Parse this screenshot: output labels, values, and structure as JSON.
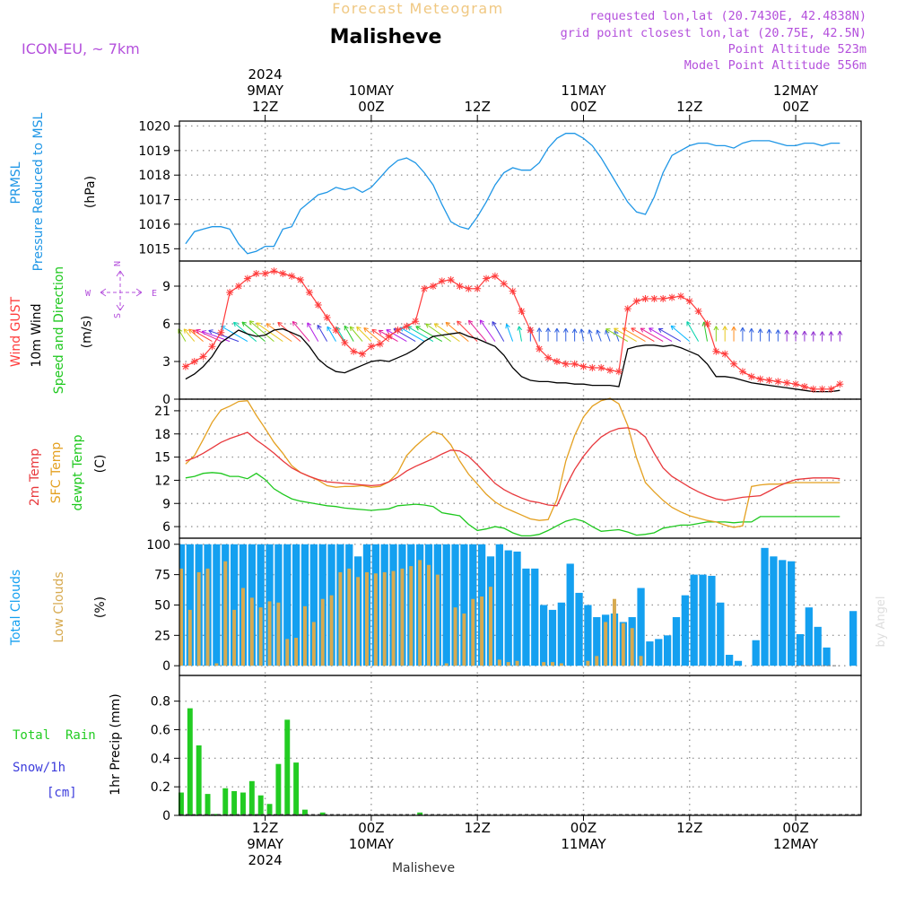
{
  "header": {
    "product": "Forecast Meteogram",
    "location": "Malisheve",
    "model": "ICON-EU, ~ 7km",
    "requested": "requested lon,lat (20.7430E, 42.4838N)",
    "gridpoint": "grid point closest lon,lat (20.75E, 42.5N)",
    "point_alt": "Point Altitude 523m",
    "model_alt": "Model Point Altitude 556m",
    "footer_location": "Malisheve",
    "credit": "by Angel"
  },
  "colors": {
    "pressure": "#1e96e6",
    "gust": "#ff3c3c",
    "wind": "#000000",
    "temp2m": "#e8383c",
    "sfc": "#e4a020",
    "dewpt": "#1ec81e",
    "clouds_total": "#14a0f0",
    "clouds_low": "#d7aa50",
    "rain": "#22cc22",
    "snow": "#3c3cdc",
    "model": "#b450dc",
    "header_product": "#f0c882",
    "grid": "#9a9a9a"
  },
  "time_axis": {
    "top": [
      {
        "lines": [
          "2024",
          "9MAY",
          "12Z"
        ],
        "hour": 12
      },
      {
        "lines": [
          "10MAY",
          "00Z"
        ],
        "hour": 24
      },
      {
        "lines": [
          "12Z"
        ],
        "hour": 36
      },
      {
        "lines": [
          "11MAY",
          "00Z"
        ],
        "hour": 48
      },
      {
        "lines": [
          "12Z"
        ],
        "hour": 60
      },
      {
        "lines": [
          "12MAY",
          "00Z"
        ],
        "hour": 72
      }
    ],
    "bottom": [
      {
        "lines": [
          "12Z",
          "9MAY",
          "2024"
        ],
        "hour": 12
      },
      {
        "lines": [
          "00Z",
          "10MAY"
        ],
        "hour": 24
      },
      {
        "lines": [
          "12Z"
        ],
        "hour": 36
      },
      {
        "lines": [
          "00Z",
          "11MAY"
        ],
        "hour": 48
      },
      {
        "lines": [
          "12Z"
        ],
        "hour": 60
      },
      {
        "lines": [
          "00Z",
          "12MAY"
        ],
        "hour": 72
      }
    ]
  },
  "panels": [
    {
      "id": "pressure",
      "labels": [
        {
          "text": "PRMSL",
          "color": "#1e96e6"
        },
        {
          "text": "Pressure Reduced to MSL",
          "color": "#1e96e6"
        },
        {
          "text": "(hPa)",
          "color": "#000000"
        }
      ]
    },
    {
      "id": "wind",
      "labels": [
        {
          "text": "Wind GUST",
          "color": "#ff3c3c"
        },
        {
          "text": "10m Wind",
          "color": "#000000"
        },
        {
          "text": "Speed and Direction",
          "color": "#1ec81e"
        },
        {
          "text": "(m/s)",
          "color": "#000000"
        }
      ],
      "compass": {
        "n": "N",
        "s": "S",
        "e": "E",
        "w": "W"
      }
    },
    {
      "id": "temp",
      "labels": [
        {
          "text": "2m Temp",
          "color": "#e8383c"
        },
        {
          "text": "SFC Temp",
          "color": "#e4a020"
        },
        {
          "text": "dewpt Temp",
          "color": "#1ec81e"
        },
        {
          "text": "(C)",
          "color": "#000000"
        }
      ]
    },
    {
      "id": "clouds",
      "labels": [
        {
          "text": "Total Clouds",
          "color": "#14a0f0"
        },
        {
          "text": "Low Clouds",
          "color": "#d7aa50"
        },
        {
          "text": "(%)",
          "color": "#000000"
        }
      ]
    },
    {
      "id": "precip",
      "labels": [
        {
          "text": "1hr Precip (mm)",
          "color": "#000000"
        }
      ],
      "legend": [
        {
          "text": "Total  Rain",
          "color": "#22cc22"
        },
        {
          "text": "Snow/1h",
          "color": "#3c3cdc"
        },
        {
          "text": "[cm]",
          "color": "#3c3cdc"
        }
      ]
    }
  ],
  "chart_data": {
    "type": "line",
    "x_unit": "hours from 2024-05-09 00Z",
    "x_range": [
      2.3,
      79.4
    ],
    "pressure": {
      "ylabel": "(hPa)",
      "ylim": [
        1014.5,
        1020.2
      ],
      "ticks": [
        1015,
        1016,
        1017,
        1018,
        1019,
        1020
      ],
      "x": [
        0,
        1,
        2,
        3,
        4,
        5,
        6,
        7,
        8,
        9,
        10,
        11,
        12,
        13,
        14,
        15,
        16,
        17,
        18,
        19,
        20,
        21,
        22,
        23,
        24,
        25,
        26,
        27,
        28,
        29,
        30,
        31,
        32,
        33,
        34,
        35,
        36,
        37,
        38,
        39,
        40,
        41,
        42,
        43,
        44,
        45,
        46,
        47,
        48,
        49,
        50,
        51,
        52,
        53,
        54,
        55,
        56,
        57,
        58,
        59,
        60,
        61,
        62,
        63,
        64,
        65,
        66,
        67,
        68,
        69,
        70,
        71,
        72,
        73,
        74,
        75,
        76,
        77
      ],
      "y": [
        1015.5,
        1015.3,
        1015.4,
        1015.2,
        1015.7,
        1015.8,
        1015.9,
        1015.9,
        1015.8,
        1015.2,
        1014.8,
        1014.9,
        1015.1,
        1015.1,
        1015.8,
        1015.9,
        1016.6,
        1016.9,
        1017.2,
        1017.3,
        1017.5,
        1017.4,
        1017.5,
        1017.3,
        1017.5,
        1017.9,
        1018.3,
        1018.6,
        1018.7,
        1018.5,
        1018.1,
        1017.6,
        1016.8,
        1016.1,
        1015.9,
        1015.8,
        1016.3,
        1016.9,
        1017.6,
        1018.1,
        1018.3,
        1018.2,
        1018.2,
        1018.5,
        1019.1,
        1019.5,
        1019.7,
        1019.7,
        1019.5,
        1019.2,
        1018.7,
        1018.1,
        1017.5,
        1016.9,
        1016.5,
        1016.4,
        1017.1,
        1018.1,
        1018.8,
        1019.0,
        1019.2,
        1019.3,
        1019.3,
        1019.2,
        1019.2,
        1019.1,
        1019.3,
        1019.4,
        1019.4,
        1019.4,
        1019.3,
        1019.2,
        1019.2,
        1019.3,
        1019.3,
        1019.2,
        1019.3,
        1019.3
      ]
    },
    "wind": {
      "ylabel": "(m/s)",
      "ylim": [
        0,
        11
      ],
      "ticks": [
        0,
        3,
        6,
        9
      ],
      "x": [
        0,
        1,
        2,
        3,
        4,
        5,
        6,
        7,
        8,
        9,
        10,
        11,
        12,
        13,
        14,
        15,
        16,
        17,
        18,
        19,
        20,
        21,
        22,
        23,
        24,
        25,
        26,
        27,
        28,
        29,
        30,
        31,
        32,
        33,
        34,
        35,
        36,
        37,
        38,
        39,
        40,
        41,
        42,
        43,
        44,
        45,
        46,
        47,
        48,
        49,
        50,
        51,
        52,
        53,
        54,
        55,
        56,
        57,
        58,
        59,
        60,
        61,
        62,
        63,
        64,
        65,
        66,
        67,
        68,
        69,
        70,
        71,
        72,
        73,
        74,
        75,
        76,
        77
      ],
      "gust": [
        3.7,
        3.2,
        2.8,
        2.6,
        3.0,
        3.4,
        4.2,
        5.3,
        8.5,
        9.0,
        9.6,
        10.0,
        10.0,
        10.2,
        10.0,
        9.8,
        9.5,
        8.5,
        7.5,
        6.5,
        5.5,
        4.5,
        3.8,
        3.6,
        4.2,
        4.4,
        5.0,
        5.5,
        5.8,
        6.2,
        8.8,
        9.0,
        9.4,
        9.5,
        9.0,
        8.8,
        8.8,
        9.6,
        9.8,
        9.2,
        8.6,
        7.0,
        5.5,
        4.0,
        3.3,
        3.0,
        2.8,
        2.8,
        2.6,
        2.5,
        2.5,
        2.3,
        2.2,
        7.2,
        7.8,
        8.0,
        8.0,
        8.0,
        8.1,
        8.2,
        7.8,
        7.0,
        6.0,
        3.8,
        3.6,
        2.8,
        2.2,
        1.8,
        1.6,
        1.5,
        1.4,
        1.3,
        1.2,
        1.0,
        0.8,
        0.8,
        0.8,
        1.2
      ],
      "speed": [
        2.0,
        1.7,
        1.5,
        1.6,
        2.0,
        2.6,
        3.4,
        4.5,
        5.0,
        5.5,
        5.2,
        5.0,
        5.1,
        5.5,
        5.6,
        5.3,
        5.0,
        4.2,
        3.2,
        2.6,
        2.2,
        2.1,
        2.4,
        2.7,
        3.0,
        3.1,
        3.0,
        3.3,
        3.6,
        4.0,
        4.6,
        5.0,
        5.1,
        5.2,
        5.3,
        5.0,
        4.8,
        4.5,
        4.2,
        3.5,
        2.5,
        1.8,
        1.5,
        1.4,
        1.4,
        1.3,
        1.3,
        1.2,
        1.2,
        1.1,
        1.1,
        1.1,
        1.0,
        4.0,
        4.2,
        4.3,
        4.3,
        4.2,
        4.3,
        4.1,
        3.8,
        3.5,
        2.8,
        1.8,
        1.8,
        1.7,
        1.5,
        1.3,
        1.2,
        1.1,
        1.0,
        0.9,
        0.8,
        0.7,
        0.6,
        0.6,
        0.6,
        0.7
      ],
      "direction_arrows_deg": [
        70,
        70,
        70,
        60,
        50,
        40,
        30,
        25,
        20,
        20,
        30,
        40,
        40,
        40,
        35,
        35,
        40,
        50,
        60,
        60,
        60,
        60,
        60,
        50,
        45,
        40,
        35,
        30,
        30,
        30,
        30,
        30,
        30,
        35,
        35,
        40,
        45,
        50,
        55,
        60,
        70,
        80,
        90,
        90,
        90,
        90,
        90,
        90,
        80,
        75,
        70,
        70,
        70,
        30,
        30,
        30,
        30,
        30,
        30,
        30,
        40,
        60,
        80,
        90,
        90,
        90,
        90,
        90,
        90,
        90,
        90,
        90,
        90,
        90,
        90,
        90,
        90,
        90
      ]
    },
    "temperature": {
      "ylabel": "(C)",
      "ylim": [
        4.5,
        22.5
      ],
      "ticks": [
        6,
        9,
        12,
        15,
        18,
        21
      ],
      "x": [
        0,
        1,
        2,
        3,
        4,
        5,
        6,
        7,
        8,
        9,
        10,
        11,
        12,
        13,
        14,
        15,
        16,
        17,
        18,
        19,
        20,
        21,
        22,
        23,
        24,
        25,
        26,
        27,
        28,
        29,
        30,
        31,
        32,
        33,
        34,
        35,
        36,
        37,
        38,
        39,
        40,
        41,
        42,
        43,
        44,
        45,
        46,
        47,
        48,
        49,
        50,
        51,
        52,
        53,
        54,
        55,
        56,
        57,
        58,
        59,
        60,
        61,
        62,
        63,
        64,
        65,
        66,
        67,
        68,
        69,
        70,
        71,
        72,
        73,
        74,
        75,
        76,
        77
      ],
      "temp2m": [
        14.8,
        14.6,
        14.5,
        14.5,
        14.9,
        15.5,
        16.2,
        16.9,
        17.4,
        17.8,
        18.2,
        17.2,
        16.4,
        15.5,
        14.5,
        13.6,
        13.0,
        12.5,
        12.1,
        11.8,
        11.7,
        11.6,
        11.5,
        11.4,
        11.3,
        11.4,
        11.8,
        12.4,
        13.2,
        13.8,
        14.3,
        14.8,
        15.4,
        15.9,
        15.8,
        15.1,
        14.0,
        12.8,
        11.6,
        10.8,
        10.2,
        9.7,
        9.3,
        9.1,
        8.8,
        8.7,
        11.2,
        13.4,
        15.1,
        16.5,
        17.6,
        18.3,
        18.7,
        18.8,
        18.5,
        17.6,
        15.5,
        13.6,
        12.5,
        11.8,
        11.1,
        10.5,
        10.0,
        9.6,
        9.4,
        9.6,
        9.8,
        9.9,
        10.0,
        10.6,
        11.2,
        11.7,
        12.1,
        12.2,
        12.3,
        12.3,
        12.3,
        12.2
      ],
      "sfc": [
        14.1,
        13.9,
        13.9,
        14.1,
        15.2,
        17.3,
        19.5,
        21.1,
        21.6,
        22.2,
        22.3,
        20.4,
        18.7,
        16.9,
        15.5,
        13.9,
        13.0,
        12.5,
        12.0,
        11.3,
        11.1,
        11.2,
        11.2,
        11.3,
        11.1,
        11.2,
        11.8,
        13.0,
        15.2,
        16.4,
        17.4,
        18.3,
        17.9,
        16.6,
        14.5,
        12.8,
        11.5,
        10.2,
        9.2,
        8.5,
        8.0,
        7.5,
        7.0,
        6.8,
        6.9,
        9.5,
        14.5,
        17.8,
        20.2,
        21.6,
        22.3,
        22.6,
        21.9,
        19.1,
        14.9,
        11.7,
        10.5,
        9.4,
        8.5,
        7.9,
        7.4,
        7.1,
        6.8,
        6.6,
        6.2,
        5.9,
        6.1,
        11.2,
        11.4,
        11.5,
        11.5,
        11.6,
        11.7,
        11.7,
        11.7,
        11.7,
        11.7,
        11.7
      ],
      "dewpt": [
        12.0,
        11.9,
        12.2,
        12.3,
        12.5,
        12.9,
        13.0,
        12.9,
        12.5,
        12.5,
        12.2,
        12.9,
        12.1,
        10.9,
        10.2,
        9.6,
        9.3,
        9.1,
        8.9,
        8.7,
        8.6,
        8.4,
        8.3,
        8.2,
        8.1,
        8.2,
        8.3,
        8.7,
        8.8,
        8.9,
        8.8,
        8.6,
        7.8,
        7.6,
        7.4,
        6.3,
        5.5,
        5.7,
        6.0,
        5.8,
        5.2,
        4.8,
        4.8,
        5.0,
        5.5,
        6.1,
        6.7,
        7.0,
        6.7,
        6.0,
        5.4,
        5.5,
        5.6,
        5.3,
        4.9,
        5.0,
        5.2,
        5.8,
        6.0,
        6.2,
        6.2,
        6.4,
        6.6,
        6.6,
        6.6,
        6.5,
        6.6,
        6.6,
        7.3,
        7.3,
        7.3,
        7.3,
        7.3,
        7.3,
        7.3,
        7.3,
        7.3,
        7.3
      ]
    },
    "clouds": {
      "type": "bar",
      "ylabel": "(%)",
      "ylim": [
        -8,
        105
      ],
      "ticks": [
        0,
        25,
        50,
        75,
        100
      ],
      "x": [
        2,
        3,
        4,
        5,
        6,
        7,
        8,
        9,
        10,
        11,
        12,
        13,
        14,
        15,
        16,
        17,
        18,
        19,
        20,
        21,
        22,
        23,
        24,
        25,
        26,
        27,
        28,
        29,
        30,
        31,
        32,
        33,
        34,
        35,
        36,
        37,
        38,
        39,
        40,
        41,
        42,
        43,
        44,
        45,
        46,
        47,
        48,
        49,
        50,
        51,
        52,
        53,
        54,
        55,
        56,
        57,
        58,
        59,
        60,
        61,
        62,
        63,
        64,
        65,
        66,
        67,
        68,
        69,
        70,
        71,
        72,
        73,
        74,
        75,
        76,
        77,
        78,
        79
      ],
      "total": [
        100,
        100,
        100,
        100,
        100,
        100,
        100,
        100,
        100,
        100,
        100,
        100,
        100,
        100,
        100,
        100,
        100,
        100,
        100,
        100,
        100,
        90,
        100,
        100,
        100,
        100,
        100,
        100,
        100,
        100,
        100,
        100,
        100,
        100,
        100,
        100,
        90,
        100,
        95,
        94,
        80,
        80,
        50,
        46,
        52,
        84,
        60,
        50,
        40,
        42,
        43,
        36,
        40,
        64,
        20,
        22,
        25,
        40,
        58,
        75,
        75,
        74,
        52,
        9,
        4,
        0,
        21,
        97,
        90,
        87,
        86,
        26,
        48,
        32,
        15,
        0,
        0,
        45
      ],
      "low": [
        82,
        80,
        46,
        77,
        80,
        2,
        86,
        46,
        64,
        56,
        48,
        53,
        52,
        22,
        23,
        49,
        36,
        55,
        58,
        77,
        80,
        73,
        77,
        76,
        77,
        78,
        80,
        82,
        87,
        83,
        75,
        2,
        48,
        43,
        55,
        57,
        65,
        5,
        3,
        4,
        0,
        0,
        3,
        3,
        2,
        0,
        0,
        4,
        8,
        36,
        55,
        35,
        31,
        8,
        0,
        0,
        0,
        0,
        0,
        0,
        0,
        0,
        0,
        0,
        0,
        0,
        0,
        0,
        0,
        0,
        0,
        0,
        0,
        0,
        0,
        0,
        0,
        0
      ]
    },
    "precip": {
      "type": "bar",
      "ylabel": "1hr Precip (mm)",
      "ylim": [
        0,
        0.98
      ],
      "ticks": [
        0,
        0.2,
        0.4,
        0.6,
        0.8
      ],
      "x": [
        3,
        4,
        5,
        6,
        7,
        8,
        9,
        10,
        11,
        12,
        13,
        14,
        15,
        16,
        17,
        18,
        19,
        20,
        21,
        22,
        23,
        24,
        25,
        26,
        27,
        28,
        29,
        30,
        31
      ],
      "rain": [
        0.16,
        0.75,
        0.49,
        0.15,
        0.01,
        0.19,
        0.17,
        0.16,
        0.24,
        0.14,
        0.08,
        0.36,
        0.67,
        0.37,
        0.04,
        0,
        0.02,
        0,
        0,
        0,
        0,
        0,
        0,
        0,
        0,
        0,
        0,
        0.02,
        0
      ]
    }
  }
}
